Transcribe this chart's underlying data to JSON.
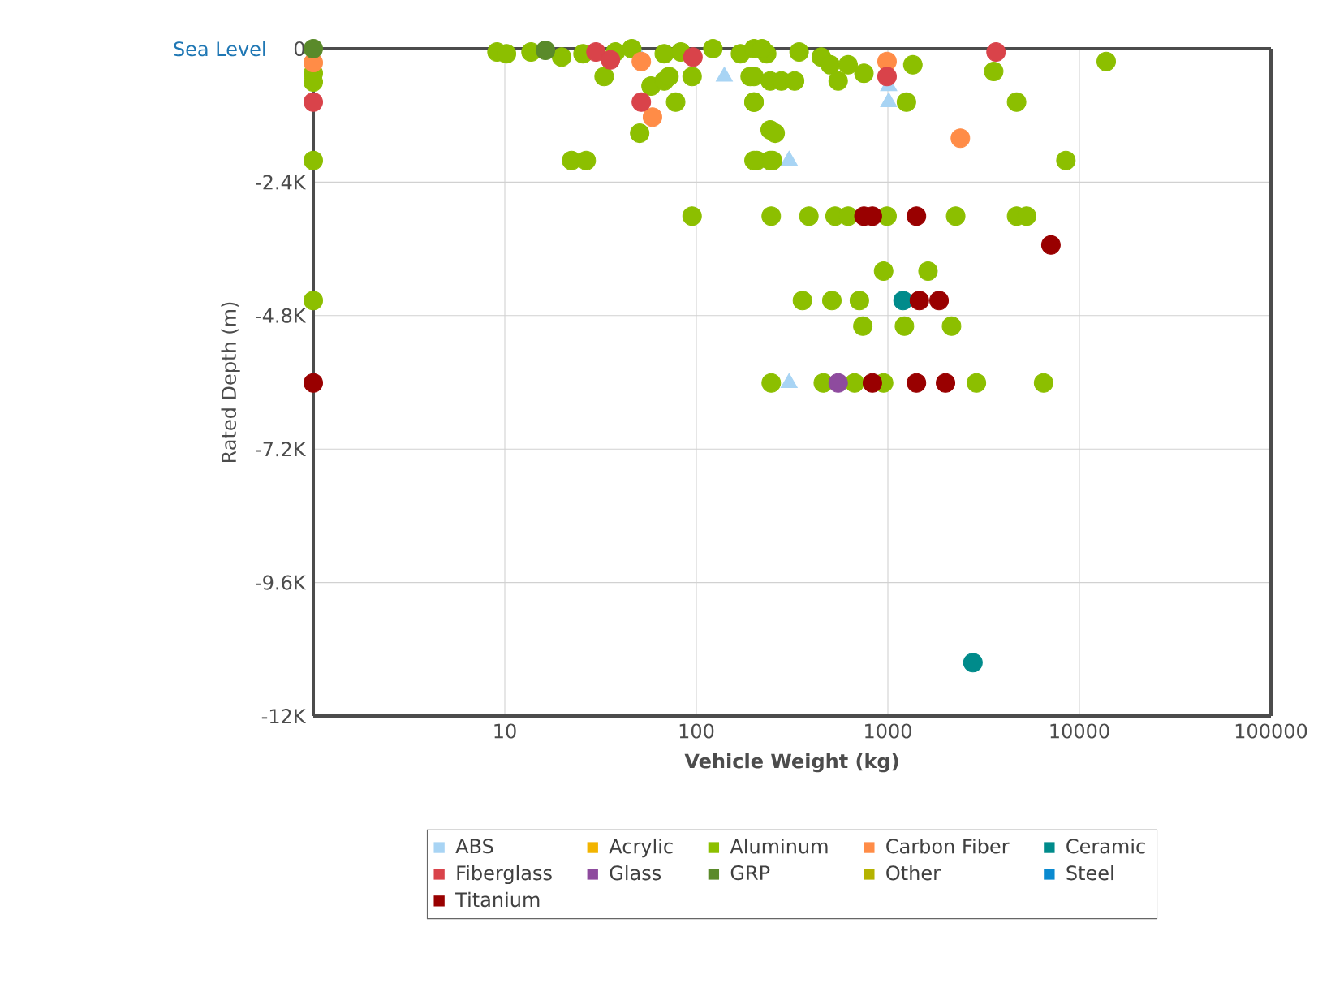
{
  "chart_data": {
    "type": "scatter",
    "xlabel": "Vehicle Weight (kg)",
    "ylabel": "Rated Depth (m)",
    "log": "x",
    "xlim": [
      1,
      100000
    ],
    "xticks": [
      10,
      100,
      1000,
      10000,
      100000
    ],
    "ylim": [
      -12000,
      0
    ],
    "yticks": [
      {
        "value": -12000,
        "label": "-12K"
      },
      {
        "value": -9600,
        "label": "-9.6K"
      },
      {
        "value": -7200,
        "label": "-7.2K"
      },
      {
        "value": -4800,
        "label": "-4.8K"
      },
      {
        "value": -2400,
        "label": "-2.4K"
      },
      0
    ],
    "grid": true,
    "legend": "bottom",
    "ref_lines": [
      {
        "axis": "y",
        "value": 0,
        "label": "Sea Level"
      }
    ],
    "series": [
      {
        "name": "ABS",
        "color": "#a8d4f4",
        "marker": "triangle",
        "x": [
          48,
          140,
          1010,
          1010,
          305,
          305
        ],
        "values": [
          0,
          -500,
          -670,
          -960,
          -2010,
          -6010
        ]
      },
      {
        "name": "Acrylic",
        "color": "#f2b400"
      },
      {
        "name": "Aluminum",
        "color": "#8cbf00",
        "x": [
          1,
          1,
          1,
          9.1,
          10.2,
          13.7,
          19.8,
          22.3,
          26.6,
          25.6,
          37.8,
          46,
          33,
          58,
          68,
          72,
          78,
          50.6,
          68,
          83,
          95,
          122,
          170,
          191,
          200,
          233,
          243,
          243,
          207,
          200,
          220,
          344,
          449,
          500,
          550,
          620,
          750,
          200,
          243,
          278,
          326,
          1350,
          1250,
          3570,
          4700,
          8500,
          200,
          258,
          200,
          250,
          13800,
          95,
          246,
          387,
          530,
          620,
          990,
          2260,
          4700,
          5300,
          950,
          1620,
          1,
          358,
          510,
          710,
          740,
          1220,
          2150,
          246,
          460,
          670,
          950,
          2900,
          6500
        ],
        "values": [
          -440,
          -600,
          -2010,
          -60,
          -90,
          -60,
          -150,
          -2010,
          -2010,
          -90,
          -60,
          0,
          -500,
          -670,
          -580,
          -500,
          -960,
          -1520,
          -90,
          -60,
          -500,
          0,
          -90,
          -500,
          -960,
          -90,
          -1460,
          -2010,
          -2010,
          0,
          0,
          -60,
          -150,
          -290,
          -580,
          -290,
          -440,
          -500,
          -580,
          -580,
          -580,
          -290,
          -960,
          -410,
          -960,
          -2010,
          -960,
          -1520,
          -2010,
          -2010,
          -230,
          -3010,
          -3010,
          -3010,
          -3010,
          -3010,
          -3010,
          -3010,
          -3010,
          -3010,
          -4000,
          -4000,
          -4530,
          -4530,
          -4530,
          -4530,
          -4990,
          -4990,
          -4990,
          -6010,
          -6010,
          -6010,
          -6010,
          -6010,
          -6010
        ]
      },
      {
        "name": "Carbon Fiber",
        "color": "#ff8c47",
        "x": [
          1,
          51.6,
          59,
          990,
          2390
        ],
        "values": [
          -250,
          -230,
          -1230,
          -230,
          -1610
        ]
      },
      {
        "name": "Ceramic",
        "color": "#008b8b",
        "x": [
          1200,
          2780
        ],
        "values": [
          -4530,
          -11040
        ]
      },
      {
        "name": "Fiberglass",
        "color": "#d9434a",
        "x": [
          1,
          29.9,
          35.6,
          51.6,
          96,
          990,
          3670
        ],
        "values": [
          -960,
          -60,
          -200,
          -960,
          -150,
          -500,
          -60
        ]
      },
      {
        "name": "Glass",
        "color": "#8e4b9e",
        "x": [
          550
        ],
        "values": [
          -6010
        ]
      },
      {
        "name": "GRP",
        "color": "#5a8a2a",
        "x": [
          1,
          16.3
        ],
        "values": [
          0,
          -30
        ]
      },
      {
        "name": "Other",
        "color": "#b5b300"
      },
      {
        "name": "Steel",
        "color": "#0a8ad0"
      },
      {
        "name": "Titanium",
        "color": "#990000",
        "x": [
          750,
          830,
          1410,
          7100,
          1460,
          1850,
          1,
          830,
          1410,
          2000
        ],
        "values": [
          -3010,
          -3010,
          -3010,
          -3530,
          -4530,
          -4530,
          -6010,
          -6010,
          -6010,
          -6010
        ]
      }
    ]
  }
}
